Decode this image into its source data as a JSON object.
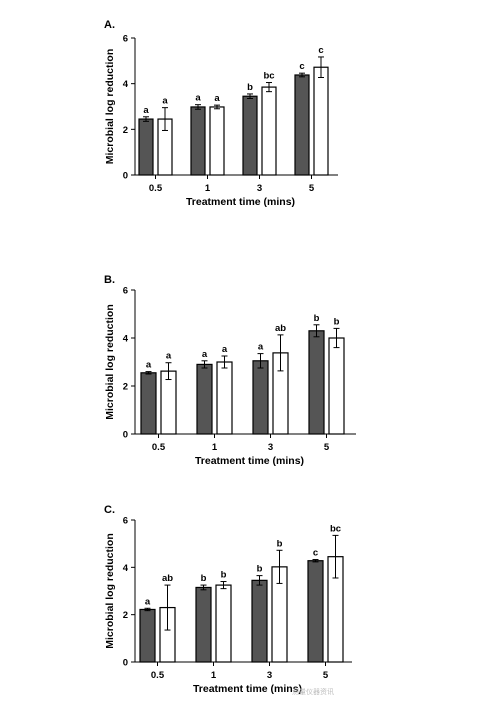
{
  "watermark": "测量仪器资讯",
  "colors": {
    "filled_bar": "#555555",
    "open_bar": "#ffffff",
    "stroke": "#000000"
  },
  "chart_data": [
    {
      "type": "bar",
      "panel_label": "A.",
      "categories": [
        "0.5",
        "1",
        "3",
        "5"
      ],
      "xlabel": "Treatment time (mins)",
      "ylabel": "Microbial log reduction",
      "ylim": [
        0,
        6
      ],
      "yticks": [
        0,
        2,
        4,
        6
      ],
      "grid": false,
      "series": [
        {
          "style": "filled",
          "values": [
            2.45,
            2.98,
            3.45,
            4.38
          ],
          "errors": [
            0.1,
            0.1,
            0.1,
            0.08
          ],
          "labels": [
            "a",
            "a",
            "b",
            "c"
          ]
        },
        {
          "style": "open",
          "values": [
            2.45,
            2.98,
            3.85,
            4.72
          ],
          "errors": [
            0.5,
            0.08,
            0.2,
            0.45
          ],
          "labels": [
            "a",
            "a",
            "bc",
            "c"
          ]
        }
      ]
    },
    {
      "type": "bar",
      "panel_label": "B.",
      "categories": [
        "0.5",
        "1",
        "3",
        "5"
      ],
      "xlabel": "Treatment time (mins)",
      "ylabel": "Microbial log reduction",
      "ylim": [
        0,
        6
      ],
      "yticks": [
        0,
        2,
        4,
        6
      ],
      "grid": false,
      "series": [
        {
          "style": "filled",
          "values": [
            2.55,
            2.9,
            3.05,
            4.3
          ],
          "errors": [
            0.05,
            0.15,
            0.3,
            0.25
          ],
          "labels": [
            "a",
            "a",
            "a",
            "b"
          ]
        },
        {
          "style": "open",
          "values": [
            2.62,
            3.0,
            3.38,
            4.0
          ],
          "errors": [
            0.35,
            0.25,
            0.75,
            0.4
          ],
          "labels": [
            "a",
            "a",
            "ab",
            "b"
          ]
        }
      ]
    },
    {
      "type": "bar",
      "panel_label": "C.",
      "categories": [
        "0.5",
        "1",
        "3",
        "5"
      ],
      "xlabel": "Treatment time (mins)",
      "ylabel": "Microbial log reduction",
      "ylim": [
        0,
        6
      ],
      "yticks": [
        0,
        2,
        4,
        6
      ],
      "grid": false,
      "series": [
        {
          "style": "filled",
          "values": [
            2.22,
            3.15,
            3.45,
            4.28
          ],
          "errors": [
            0.05,
            0.1,
            0.2,
            0.05
          ],
          "labels": [
            "a",
            "b",
            "b",
            "c"
          ]
        },
        {
          "style": "open",
          "values": [
            2.3,
            3.25,
            4.02,
            4.45
          ],
          "errors": [
            0.95,
            0.15,
            0.7,
            0.9
          ],
          "labels": [
            "ab",
            "b",
            "b",
            "bc"
          ]
        }
      ]
    }
  ]
}
